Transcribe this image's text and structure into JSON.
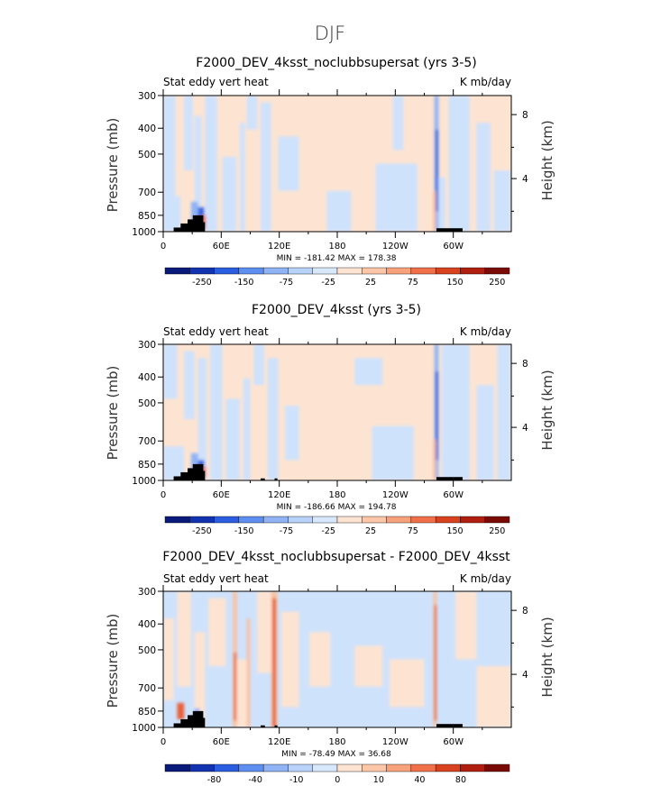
{
  "figure": {
    "title": "DJF"
  },
  "chart_data": [
    {
      "type": "heatmap",
      "title": "F2000_DEV_4ksst_noclubbsupersat (yrs 3-5)",
      "left_label": "Stat eddy vert heat",
      "right_label": "K mb/day",
      "ylabel": "Pressure (mb)",
      "ylabel_right": "Height (km)",
      "x_ticks": [
        "0",
        "60E",
        "120E",
        "180",
        "120W",
        "60W"
      ],
      "y_ticks": [
        "300",
        "400",
        "500",
        "700",
        "850",
        "1000"
      ],
      "height_ticks": [
        "8",
        "4"
      ],
      "min_max": "MIN = -181.42   MAX = 178.38",
      "colorbar_labels": [
        "-250",
        "-150",
        "-75",
        "-25",
        "25",
        "75",
        "150",
        "250"
      ],
      "ylim": [
        1000,
        300
      ],
      "xlim": [
        0,
        360
      ]
    },
    {
      "type": "heatmap",
      "title": "F2000_DEV_4ksst (yrs 3-5)",
      "left_label": "Stat eddy vert heat",
      "right_label": "K mb/day",
      "ylabel": "Pressure (mb)",
      "ylabel_right": "Height (km)",
      "x_ticks": [
        "0",
        "60E",
        "120E",
        "180",
        "120W",
        "60W"
      ],
      "y_ticks": [
        "300",
        "400",
        "500",
        "700",
        "850",
        "1000"
      ],
      "height_ticks": [
        "8",
        "4"
      ],
      "min_max": "MIN = -186.66   MAX = 194.78",
      "colorbar_labels": [
        "-250",
        "-150",
        "-75",
        "-25",
        "25",
        "75",
        "150",
        "250"
      ],
      "ylim": [
        1000,
        300
      ],
      "xlim": [
        0,
        360
      ]
    },
    {
      "type": "heatmap",
      "title": "F2000_DEV_4ksst_noclubbsupersat - F2000_DEV_4ksst",
      "left_label": "Stat eddy vert heat",
      "right_label": "K mb/day",
      "ylabel": "Pressure (mb)",
      "ylabel_right": "Height (km)",
      "x_ticks": [
        "0",
        "60E",
        "120E",
        "180",
        "120W",
        "60W"
      ],
      "y_ticks": [
        "300",
        "400",
        "500",
        "700",
        "850",
        "1000"
      ],
      "height_ticks": [
        "8",
        "4"
      ],
      "min_max": "MIN = -78.49   MAX = 36.68",
      "colorbar_labels": [
        "-80",
        "-40",
        "-10",
        "0",
        "10",
        "40",
        "80"
      ],
      "ylim": [
        1000,
        300
      ],
      "xlim": [
        0,
        360
      ]
    }
  ],
  "colors": {
    "colorbar": [
      "#0a1a7a",
      "#1233b0",
      "#2a5de0",
      "#5d8ef0",
      "#8fb3f5",
      "#b8d2fa",
      "#d8e8fc",
      "#fde4d2",
      "#fbc7a8",
      "#f7a27a",
      "#f0704a",
      "#d9421f",
      "#b01e0f",
      "#7a0a05"
    ],
    "topography": "#000000"
  }
}
